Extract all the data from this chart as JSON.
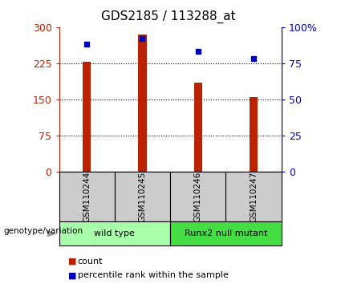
{
  "title": "GDS2185 / 113288_at",
  "samples": [
    "GSM110244",
    "GSM110245",
    "GSM110246",
    "GSM110247"
  ],
  "counts": [
    228,
    285,
    185,
    155
  ],
  "percentiles": [
    88,
    92,
    83,
    78
  ],
  "ylim_left": [
    0,
    300
  ],
  "ylim_right": [
    0,
    100
  ],
  "yticks_left": [
    0,
    75,
    150,
    225,
    300
  ],
  "ytick_labels_left": [
    "0",
    "75",
    "150",
    "225",
    "300"
  ],
  "yticks_right": [
    0,
    25,
    50,
    75,
    100
  ],
  "ytick_labels_right": [
    "0",
    "25",
    "50",
    "75",
    "100%"
  ],
  "bar_color": "#bb2200",
  "dot_color": "#0000bb",
  "sample_box_color": "#cccccc",
  "groups": [
    {
      "label": "wild type",
      "indices": [
        0,
        1
      ],
      "color": "#aaffaa"
    },
    {
      "label": "Runx2 null mutant",
      "indices": [
        2,
        3
      ],
      "color": "#44dd44"
    }
  ],
  "group_label": "genotype/variation",
  "legend_count_label": "count",
  "legend_pct_label": "percentile rank within the sample",
  "grid_color": "#000000",
  "title_fontsize": 11,
  "tick_fontsize": 9,
  "bar_width": 0.15
}
